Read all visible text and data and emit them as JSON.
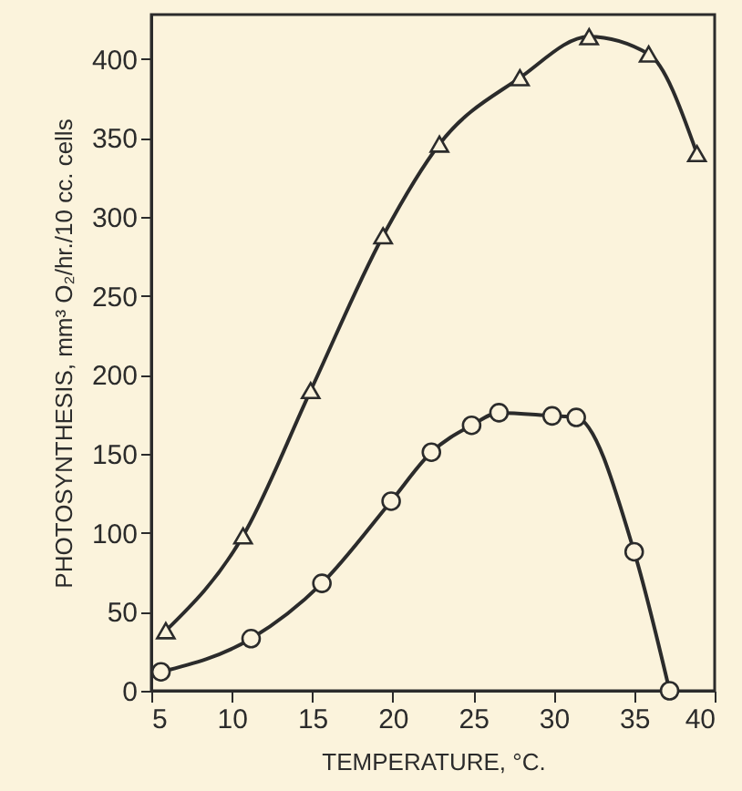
{
  "chart_data": {
    "type": "line",
    "xlabel": "TEMPERATURE, °C.",
    "ylabel": "PHOTOSYNTHESIS, mm³ O₂/hr./10 cc. cells",
    "series": [
      {
        "color": "#2b2b2b",
        "marker": "triangle",
        "x": [
          5.9,
          10.7,
          14.9,
          19.4,
          22.9,
          27.9,
          32.2,
          35.9,
          38.9
        ],
        "values": [
          38,
          98,
          190,
          288,
          346,
          388,
          414,
          403,
          340
        ]
      },
      {
        "color": "#2b2b2b",
        "marker": "circle",
        "x": [
          5.6,
          11.2,
          15.6,
          19.9,
          22.4,
          24.9,
          26.6,
          29.9,
          31.4,
          35.0,
          37.2
        ],
        "values": [
          12,
          33,
          68,
          120,
          151,
          168,
          176,
          174,
          173,
          88,
          0
        ]
      }
    ],
    "xlim": [
      5,
      40
    ],
    "xticks": [
      5,
      10,
      15,
      20,
      25,
      30,
      35,
      40
    ],
    "ylim": [
      0,
      428
    ],
    "yticks": [
      0,
      50,
      100,
      150,
      200,
      250,
      300,
      350,
      400
    ],
    "grid": false,
    "line_style": "solid"
  }
}
